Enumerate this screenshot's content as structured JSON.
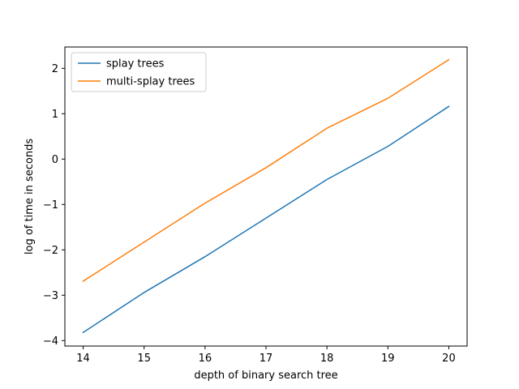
{
  "chart_data": {
    "type": "line",
    "title": "",
    "xlabel": "depth of binary search tree",
    "ylabel": "log of time in seconds",
    "x": [
      14,
      15,
      16,
      17,
      18,
      19,
      20
    ],
    "xlim": [
      13.7,
      20.3
    ],
    "ylim": [
      -4.12,
      2.47
    ],
    "xticks": [
      14,
      15,
      16,
      17,
      18,
      19,
      20
    ],
    "yticks": [
      -4,
      -3,
      -2,
      -1,
      0,
      1,
      2
    ],
    "grid": false,
    "legend_position": "upper-left",
    "series": [
      {
        "name": "splay trees",
        "color": "#1f77b4",
        "values": [
          -3.82,
          -2.94,
          -2.15,
          -1.3,
          -0.45,
          0.28,
          1.16
        ]
      },
      {
        "name": "multi-splay trees",
        "color": "#ff7f0e",
        "values": [
          -2.69,
          -1.83,
          -0.97,
          -0.19,
          0.68,
          1.34,
          2.19
        ]
      }
    ]
  }
}
